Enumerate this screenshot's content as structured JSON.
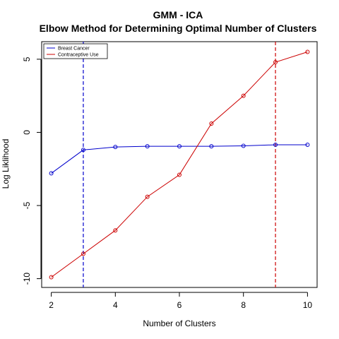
{
  "chart_data": {
    "type": "line",
    "title": "GMM - ICA",
    "subtitle": "Elbow Method for Determining Optimal Number of Clusters",
    "xlabel": "Number of Clusters",
    "ylabel": "Log Liklihood",
    "x": [
      2,
      3,
      4,
      5,
      6,
      7,
      8,
      9,
      10
    ],
    "xlim": [
      1.7,
      10.3
    ],
    "ylim": [
      -10.6,
      6.2
    ],
    "x_ticks": [
      2,
      4,
      6,
      8,
      10
    ],
    "y_ticks": [
      -10,
      -5,
      0,
      5
    ],
    "grid": false,
    "legend_position": "top-left",
    "series": [
      {
        "name": "Breast Cancer",
        "color": "#0000CC",
        "values": [
          -2.8,
          -1.2,
          -1.0,
          -0.95,
          -0.95,
          -0.95,
          -0.92,
          -0.85,
          -0.85
        ]
      },
      {
        "name": "Contraceptive Use",
        "color": "#CC0000",
        "values": [
          -9.9,
          -8.3,
          -6.7,
          -4.4,
          -2.9,
          0.6,
          2.5,
          4.8,
          5.5
        ]
      }
    ],
    "vlines": [
      {
        "x": 3,
        "color": "#0000CC",
        "style": "dashed"
      },
      {
        "x": 9,
        "color": "#CC0000",
        "style": "dashed"
      }
    ]
  }
}
